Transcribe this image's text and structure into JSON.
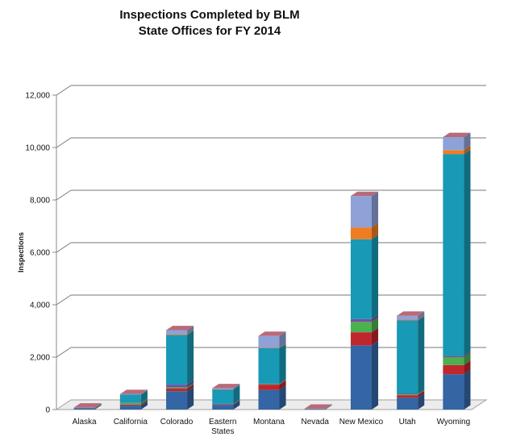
{
  "chart_data": {
    "type": "bar",
    "stacked": true,
    "three_d": true,
    "title_line1": "Inspections Completed by BLM",
    "title_line2": "State Offices for FY 2014",
    "ylabel": "Inspections",
    "xlabel": "",
    "ylim": [
      0,
      12000
    ],
    "yticks": [
      {
        "value": 0,
        "label": "0"
      },
      {
        "value": 2000,
        "label": "2,000"
      },
      {
        "value": 4000,
        "label": "4,000"
      },
      {
        "value": 6000,
        "label": "6,000"
      },
      {
        "value": 8000,
        "label": "8,000"
      },
      {
        "value": 10000,
        "label": "10,000"
      },
      {
        "value": 12000,
        "label": "12,000"
      }
    ],
    "grid": true,
    "legend": "none",
    "categories": [
      {
        "line1": "Alaska",
        "line2": ""
      },
      {
        "line1": "California",
        "line2": ""
      },
      {
        "line1": "Colorado",
        "line2": ""
      },
      {
        "line1": "Eastern",
        "line2": "States"
      },
      {
        "line1": "Montana",
        "line2": ""
      },
      {
        "line1": "Nevada",
        "line2": ""
      },
      {
        "line1": "New Mexico",
        "line2": ""
      },
      {
        "line1": "Utah",
        "line2": ""
      },
      {
        "line1": "Wyoming",
        "line2": ""
      }
    ],
    "series": [
      {
        "color": "#3465a4",
        "values": [
          30,
          150,
          700,
          180,
          750,
          10,
          2450,
          450,
          1350
        ]
      },
      {
        "color": "#c0272d",
        "values": [
          10,
          40,
          100,
          20,
          200,
          5,
          500,
          100,
          350
        ]
      },
      {
        "color": "#4caf50",
        "values": [
          5,
          60,
          50,
          10,
          20,
          3,
          400,
          30,
          300
        ]
      },
      {
        "color": "#7b4aa8",
        "values": [
          3,
          20,
          100,
          10,
          20,
          2,
          100,
          20,
          50
        ]
      },
      {
        "color": "#1899b5",
        "values": [
          20,
          300,
          1900,
          550,
          1350,
          10,
          3050,
          2800,
          7700
        ]
      },
      {
        "color": "#f07c22",
        "values": [
          0,
          0,
          30,
          5,
          20,
          0,
          450,
          30,
          150
        ]
      },
      {
        "color": "#8ea2d8",
        "values": [
          10,
          20,
          150,
          40,
          450,
          5,
          1200,
          150,
          500
        ]
      }
    ]
  }
}
